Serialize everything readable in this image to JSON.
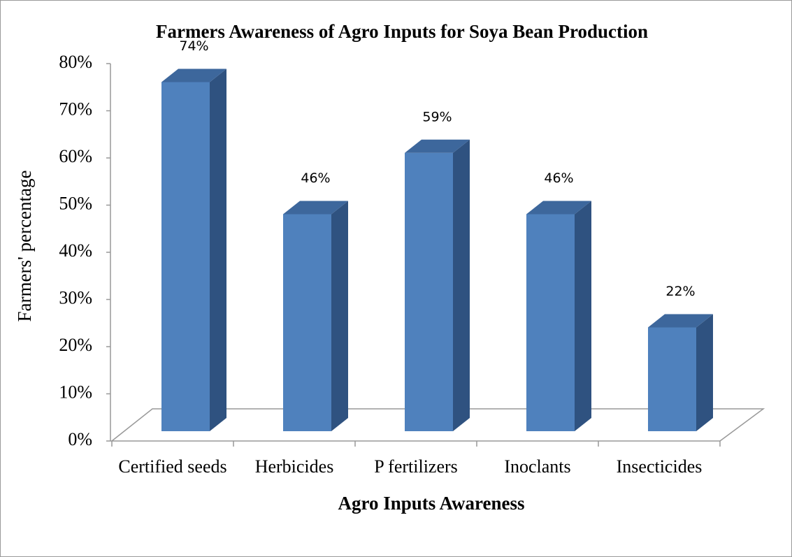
{
  "chart_data": {
    "type": "bar3d",
    "title": "Farmers Awareness of Agro Inputs for Soya Bean Production",
    "x_label": "Agro Inputs Awareness",
    "y_label": "Farmers' percentage",
    "categories": [
      "Certified seeds",
      "Herbicides",
      "P fertilizers",
      "Inoclants",
      "Insecticides"
    ],
    "values": [
      74,
      46,
      59,
      46,
      22
    ],
    "value_labels": [
      "74%",
      "46%",
      "59%",
      "46%",
      "22%"
    ],
    "color": "#4f81bd",
    "ylim": [
      0,
      80
    ],
    "yticks": [
      {
        "value": 0,
        "label": "0%"
      },
      {
        "value": 10,
        "label": "10%"
      },
      {
        "value": 20,
        "label": "20%"
      },
      {
        "value": 30,
        "label": "30%"
      },
      {
        "value": 40,
        "label": "40%"
      },
      {
        "value": 50,
        "label": "50%"
      },
      {
        "value": 60,
        "label": "60%"
      },
      {
        "value": 70,
        "label": "70%"
      },
      {
        "value": 80,
        "label": "80%"
      }
    ]
  }
}
